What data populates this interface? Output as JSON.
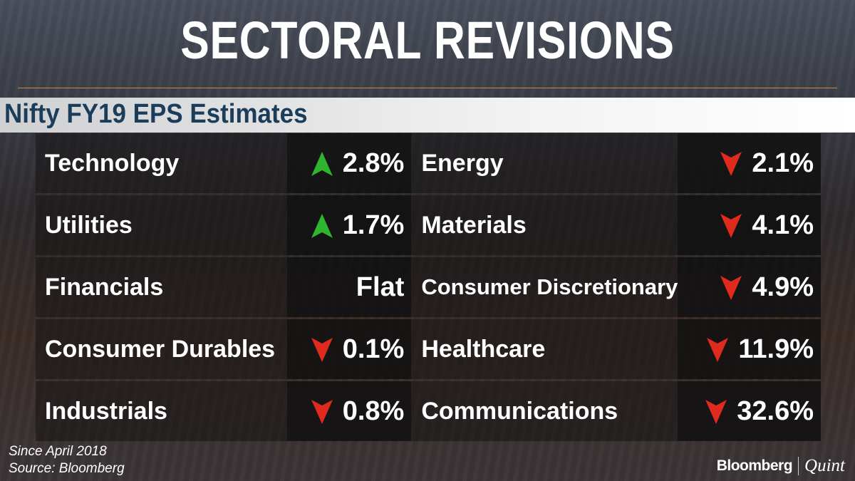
{
  "title": "SECTORAL REVISIONS",
  "subtitle": "Nifty FY19 EPS Estimates",
  "colors": {
    "up": "#2db52d",
    "down": "#e02a1e",
    "subtitle": "#1c3d5a"
  },
  "chart_data": {
    "type": "table",
    "rows": [
      [
        {
          "sector": "Technology",
          "value": "2.8%",
          "direction": "up"
        },
        {
          "sector": "Energy",
          "value": "2.1%",
          "direction": "down"
        }
      ],
      [
        {
          "sector": "Utilities",
          "value": "1.7%",
          "direction": "up"
        },
        {
          "sector": "Materials",
          "value": "4.1%",
          "direction": "down"
        }
      ],
      [
        {
          "sector": "Financials",
          "value": "Flat",
          "direction": "none"
        },
        {
          "sector": "Consumer Discretionary",
          "value": "4.9%",
          "direction": "down"
        }
      ],
      [
        {
          "sector": "Consumer Durables",
          "value": "0.1%",
          "direction": "down"
        },
        {
          "sector": "Healthcare",
          "value": "11.9%",
          "direction": "down"
        }
      ],
      [
        {
          "sector": "Industrials",
          "value": "0.8%",
          "direction": "down"
        },
        {
          "sector": "Communications",
          "value": "32.6%",
          "direction": "down"
        }
      ]
    ]
  },
  "footnote": {
    "line1": "Since April 2018",
    "line2": "Source: Bloomberg"
  },
  "logo": {
    "brand1": "Bloomberg",
    "brand2": "Quint"
  }
}
